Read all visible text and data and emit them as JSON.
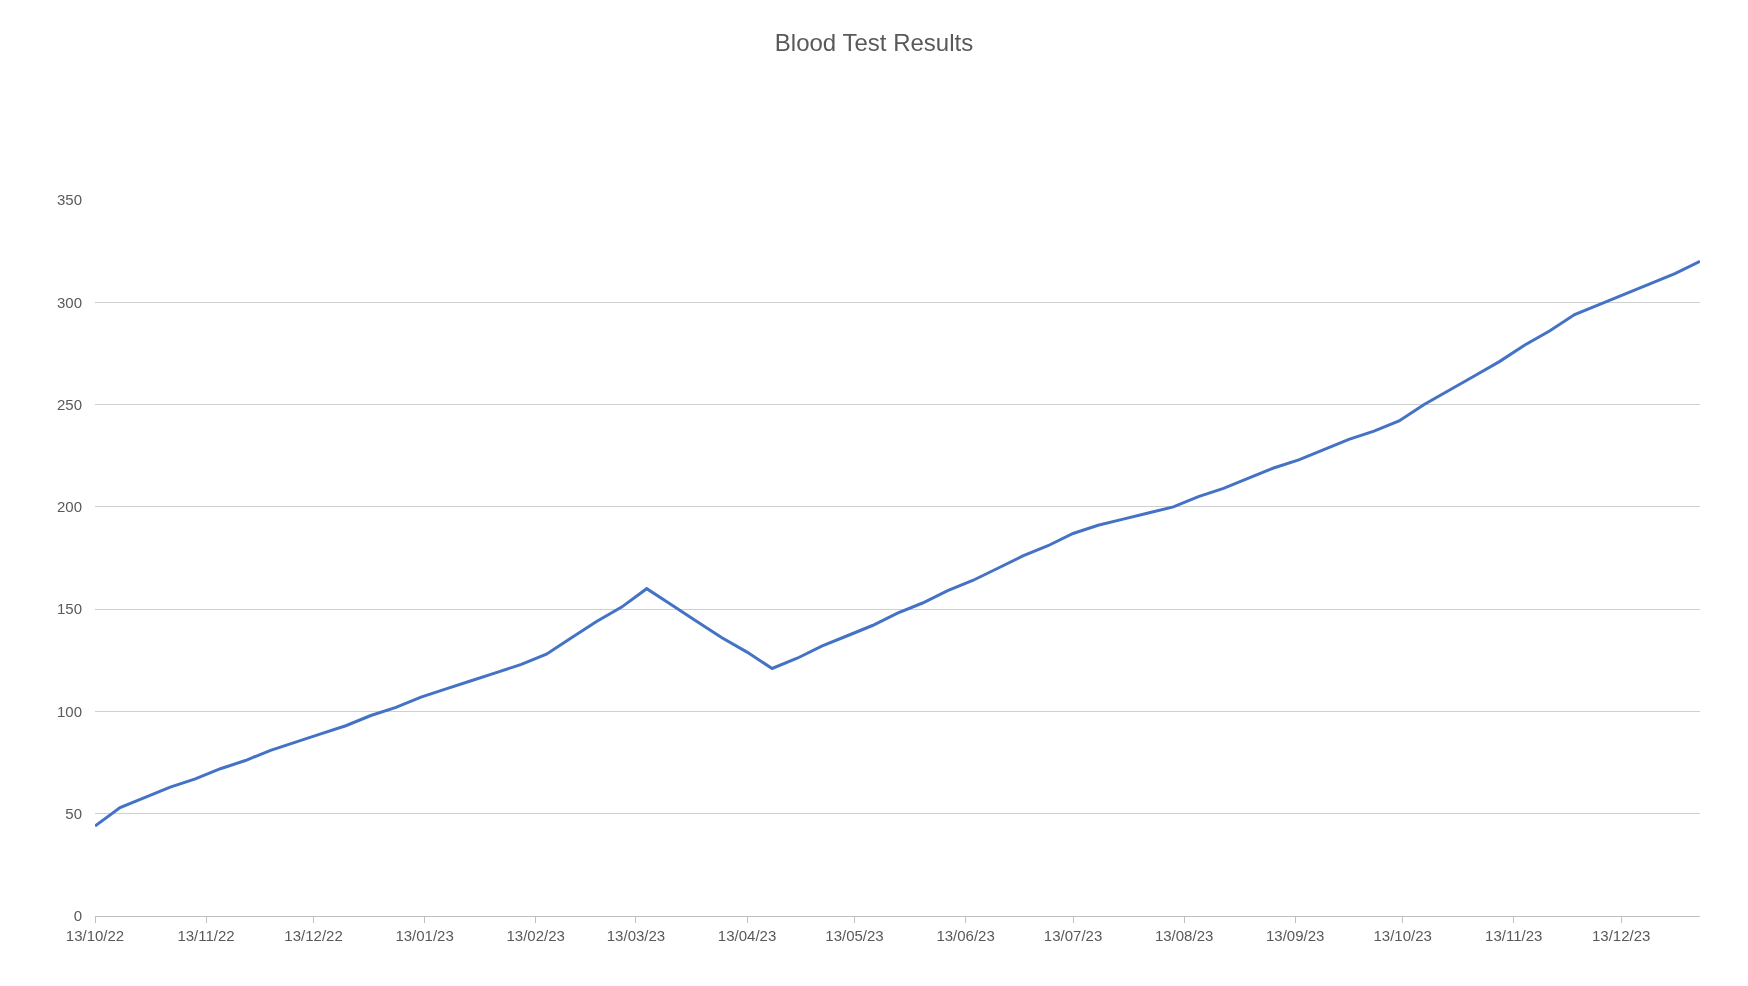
{
  "chart_data": {
    "type": "line",
    "title": "Blood Test Results",
    "x": [
      "2022-10-13",
      "2022-10-20",
      "2022-10-27",
      "2022-11-03",
      "2022-11-10",
      "2022-11-17",
      "2022-11-24",
      "2022-12-01",
      "2022-12-08",
      "2022-12-15",
      "2022-12-22",
      "2022-12-29",
      "2023-01-05",
      "2023-01-12",
      "2023-01-19",
      "2023-01-26",
      "2023-02-02",
      "2023-02-09",
      "2023-02-16",
      "2023-02-23",
      "2023-03-02",
      "2023-03-09",
      "2023-03-16",
      "2023-03-23",
      "2023-03-30",
      "2023-04-06",
      "2023-04-13",
      "2023-04-20",
      "2023-04-27",
      "2023-05-04",
      "2023-05-11",
      "2023-05-18",
      "2023-05-25",
      "2023-06-01",
      "2023-06-08",
      "2023-06-15",
      "2023-06-22",
      "2023-06-29",
      "2023-07-06",
      "2023-07-13",
      "2023-07-20",
      "2023-07-27",
      "2023-08-03",
      "2023-08-10",
      "2023-08-17",
      "2023-08-24",
      "2023-08-31",
      "2023-09-07",
      "2023-09-14",
      "2023-09-21",
      "2023-09-28",
      "2023-10-05",
      "2023-10-12",
      "2023-10-19",
      "2023-10-26",
      "2023-11-02",
      "2023-11-09",
      "2023-11-16",
      "2023-11-23",
      "2023-11-30",
      "2023-12-07",
      "2023-12-14",
      "2023-12-21",
      "2023-12-28",
      "2024-01-04"
    ],
    "series": [
      {
        "color": "#4472c4",
        "values": [
          44,
          53,
          58,
          63,
          67,
          72,
          76,
          81,
          85,
          89,
          93,
          98,
          102,
          107,
          111,
          115,
          119,
          123,
          128,
          136,
          144,
          151,
          160,
          152,
          144,
          136,
          129,
          121,
          126,
          132,
          137,
          142,
          148,
          153,
          159,
          164,
          170,
          176,
          181,
          187,
          191,
          194,
          197,
          200,
          205,
          209,
          214,
          219,
          223,
          228,
          233,
          237,
          242,
          250,
          257,
          264,
          271,
          279,
          286,
          294,
          299,
          304,
          309,
          314,
          320
        ]
      }
    ],
    "xlim": [
      "2022-10-13",
      "2024-01-04"
    ],
    "xticks": [
      {
        "value": "2022-10-13",
        "label": "13/10/22"
      },
      {
        "value": "2022-11-13",
        "label": "13/11/22"
      },
      {
        "value": "2022-12-13",
        "label": "13/12/22"
      },
      {
        "value": "2023-01-13",
        "label": "13/01/23"
      },
      {
        "value": "2023-02-13",
        "label": "13/02/23"
      },
      {
        "value": "2023-03-13",
        "label": "13/03/23"
      },
      {
        "value": "2023-04-13",
        "label": "13/04/23"
      },
      {
        "value": "2023-05-13",
        "label": "13/05/23"
      },
      {
        "value": "2023-06-13",
        "label": "13/06/23"
      },
      {
        "value": "2023-07-13",
        "label": "13/07/23"
      },
      {
        "value": "2023-08-13",
        "label": "13/08/23"
      },
      {
        "value": "2023-09-13",
        "label": "13/09/23"
      },
      {
        "value": "2023-10-13",
        "label": "13/10/23"
      },
      {
        "value": "2023-11-13",
        "label": "13/11/23"
      },
      {
        "value": "2023-12-13",
        "label": "13/12/23"
      }
    ],
    "ylim": [
      0,
      350
    ],
    "yticks": [
      0,
      50,
      100,
      150,
      200,
      250,
      300,
      350
    ],
    "grid": "y",
    "marker": "none",
    "line_style": "solid"
  }
}
